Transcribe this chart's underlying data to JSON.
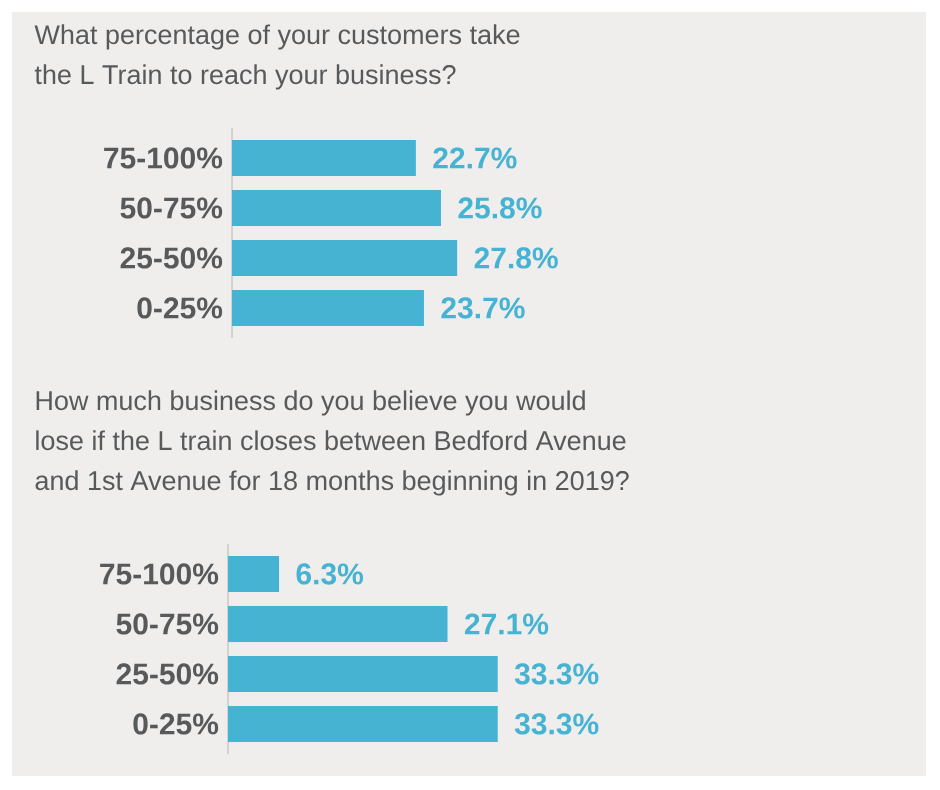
{
  "chart_data": [
    {
      "type": "bar",
      "orientation": "horizontal",
      "title": "What percentage of your customers take\nthe L Train to reach your business?",
      "categories": [
        "75-100%",
        "50-75%",
        "25-50%",
        "0-25%"
      ],
      "values": [
        22.7,
        25.8,
        27.8,
        23.7
      ],
      "value_labels": [
        "22.7%",
        "25.8%",
        "27.8%",
        "23.7%"
      ],
      "color": "#46b3d3"
    },
    {
      "type": "bar",
      "orientation": "horizontal",
      "title": "How much business do you believe you would\nlose if the L train closes between Bedford Avenue\nand 1st Avenue for 18 months beginning in 2019?",
      "categories": [
        "75-100%",
        "50-75%",
        "25-50%",
        "0-25%"
      ],
      "values": [
        6.3,
        27.1,
        33.3,
        33.3
      ],
      "value_labels": [
        "6.3%",
        "27.1%",
        "33.3%",
        "33.3%"
      ],
      "color": "#46b3d3"
    }
  ]
}
